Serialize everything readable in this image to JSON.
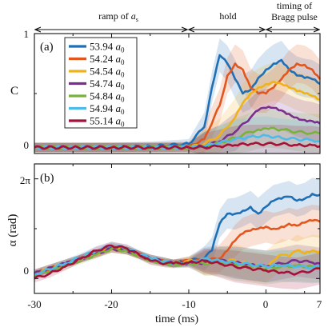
{
  "header": {
    "ramp_label": "ramp of ",
    "ramp_symbol": "a",
    "ramp_subscript": "s",
    "hold_label": "hold",
    "timing_line1": "timing of",
    "timing_line2": "Bragg pulse"
  },
  "colors": {
    "axis": "#111111",
    "series": [
      "#1f6fb6",
      "#e2561e",
      "#f0b21b",
      "#7a2e8e",
      "#78b23a",
      "#4dbbe9",
      "#a4123a"
    ]
  },
  "chart_data": [
    {
      "type": "line",
      "panel_label": "(a)",
      "ylabel": "C",
      "xlabel": "",
      "xlim": [
        -30,
        7
      ],
      "ylim": [
        0,
        1
      ],
      "y_tick_labels": [
        "0",
        "1"
      ],
      "x_ticks": [
        -30,
        -20,
        -10,
        0,
        7
      ],
      "x_tick_labels": [
        "",
        "",
        "",
        "",
        ""
      ],
      "grid": false,
      "legend_position": "top-left",
      "legend_unit": "a",
      "legend_unit_subscript": "0",
      "series": [
        {
          "name": "53.94",
          "x": [
            -30,
            -25,
            -20,
            -15,
            -10,
            -8,
            -7,
            -6,
            -5,
            -4,
            -3,
            -2,
            -1,
            0,
            1,
            2,
            3,
            4,
            5,
            6,
            7
          ],
          "y": [
            0.05,
            0.05,
            0.05,
            0.06,
            0.08,
            0.22,
            0.55,
            0.82,
            0.75,
            0.62,
            0.5,
            0.53,
            0.63,
            0.7,
            0.75,
            0.78,
            0.7,
            0.65,
            0.63,
            0.62,
            0.58
          ]
        },
        {
          "name": "54.24",
          "x": [
            -30,
            -25,
            -20,
            -15,
            -10,
            -8,
            -6,
            -5,
            -4,
            -3,
            -2,
            -1,
            0,
            1,
            2,
            3,
            4,
            5,
            6,
            7
          ],
          "y": [
            0.05,
            0.05,
            0.05,
            0.05,
            0.06,
            0.12,
            0.4,
            0.65,
            0.75,
            0.7,
            0.55,
            0.5,
            0.5,
            0.55,
            0.62,
            0.7,
            0.75,
            0.74,
            0.7,
            0.62
          ]
        },
        {
          "name": "54.54",
          "x": [
            -30,
            -25,
            -20,
            -15,
            -10,
            -8,
            -6,
            -4,
            -3,
            -2,
            -1,
            0,
            1,
            2,
            3,
            4,
            5,
            6,
            7
          ],
          "y": [
            0.05,
            0.05,
            0.05,
            0.05,
            0.05,
            0.08,
            0.15,
            0.3,
            0.42,
            0.5,
            0.55,
            0.58,
            0.6,
            0.58,
            0.55,
            0.52,
            0.5,
            0.48,
            0.45
          ]
        },
        {
          "name": "54.74",
          "x": [
            -30,
            -25,
            -20,
            -15,
            -10,
            -8,
            -6,
            -4,
            -2,
            -1,
            0,
            1,
            2,
            3,
            4,
            5,
            6,
            7
          ],
          "y": [
            0.05,
            0.05,
            0.05,
            0.05,
            0.05,
            0.06,
            0.1,
            0.18,
            0.3,
            0.36,
            0.38,
            0.38,
            0.36,
            0.33,
            0.3,
            0.28,
            0.27,
            0.25
          ]
        },
        {
          "name": "54.84",
          "x": [
            -30,
            -25,
            -20,
            -15,
            -10,
            -8,
            -6,
            -4,
            -2,
            -1,
            0,
            2,
            4,
            6,
            7
          ],
          "y": [
            0.05,
            0.05,
            0.05,
            0.05,
            0.05,
            0.06,
            0.09,
            0.13,
            0.18,
            0.2,
            0.21,
            0.2,
            0.18,
            0.17,
            0.17
          ]
        },
        {
          "name": "54.94",
          "x": [
            -30,
            -25,
            -20,
            -15,
            -10,
            -8,
            -6,
            -4,
            -2,
            0,
            2,
            4,
            6,
            7
          ],
          "y": [
            0.05,
            0.05,
            0.05,
            0.05,
            0.05,
            0.06,
            0.09,
            0.12,
            0.14,
            0.15,
            0.13,
            0.12,
            0.11,
            0.1
          ]
        },
        {
          "name": "55.14",
          "x": [
            -30,
            -25,
            -20,
            -15,
            -10,
            -8,
            -6,
            -4,
            -2,
            0,
            2,
            4,
            6,
            7
          ],
          "y": [
            0.05,
            0.05,
            0.05,
            0.05,
            0.05,
            0.05,
            0.06,
            0.07,
            0.08,
            0.08,
            0.08,
            0.07,
            0.07,
            0.06
          ]
        }
      ]
    },
    {
      "type": "line",
      "panel_label": "(b)",
      "ylabel": "α (rad)",
      "xlabel": "time (ms)",
      "xlim": [
        -30,
        7
      ],
      "ylim": [
        -0.15,
        1.15
      ],
      "y_ticks": [
        0,
        1
      ],
      "y_tick_labels": [
        "0",
        "2π"
      ],
      "x_ticks": [
        -30,
        -20,
        -10,
        0,
        7
      ],
      "x_tick_labels": [
        "-30",
        "-20",
        "-10",
        "0",
        "7"
      ],
      "grid": false,
      "series": [
        {
          "name": "53.94",
          "x": [
            -30,
            -26,
            -22,
            -20,
            -18,
            -15,
            -12,
            -10,
            -8,
            -7,
            -6,
            -5,
            -4,
            -3,
            -2,
            -1,
            0,
            1,
            2,
            3,
            4,
            5,
            6,
            7
          ],
          "y": [
            0.05,
            0.15,
            0.25,
            0.32,
            0.28,
            0.2,
            0.15,
            0.18,
            0.2,
            0.28,
            0.55,
            0.65,
            0.65,
            0.68,
            0.72,
            0.65,
            0.72,
            0.78,
            0.8,
            0.82,
            0.78,
            0.8,
            0.85,
            0.84
          ]
        },
        {
          "name": "54.24",
          "x": [
            -30,
            -26,
            -22,
            -20,
            -18,
            -15,
            -12,
            -10,
            -8,
            -6,
            -5,
            -4,
            -3,
            -2,
            -1,
            0,
            1,
            2,
            3,
            4,
            5,
            6,
            7
          ],
          "y": [
            0.05,
            0.15,
            0.25,
            0.3,
            0.28,
            0.2,
            0.15,
            0.18,
            0.18,
            0.2,
            0.28,
            0.38,
            0.45,
            0.48,
            0.5,
            0.52,
            0.5,
            0.52,
            0.55,
            0.53,
            0.56,
            0.58,
            0.57
          ]
        },
        {
          "name": "54.54",
          "x": [
            -30,
            -26,
            -22,
            -20,
            -18,
            -15,
            -12,
            -10,
            -8,
            -6,
            -4,
            -2,
            0,
            1,
            2,
            3,
            4,
            5,
            6,
            7
          ],
          "y": [
            0.05,
            0.15,
            0.25,
            0.3,
            0.28,
            0.2,
            0.15,
            0.18,
            0.15,
            0.18,
            0.18,
            0.14,
            0.12,
            0.18,
            0.24,
            0.22,
            0.28,
            0.25,
            0.28,
            0.27
          ]
        },
        {
          "name": "54.74",
          "x": [
            -30,
            -26,
            -22,
            -20,
            -18,
            -15,
            -12,
            -10,
            -8,
            -6,
            -4,
            -2,
            0,
            2,
            4,
            6,
            7
          ],
          "y": [
            0.05,
            0.15,
            0.25,
            0.3,
            0.28,
            0.2,
            0.15,
            0.15,
            0.16,
            0.18,
            0.16,
            0.14,
            0.12,
            0.15,
            0.18,
            0.16,
            0.15
          ]
        },
        {
          "name": "54.84",
          "x": [
            -30,
            -26,
            -22,
            -20,
            -18,
            -15,
            -12,
            -10,
            -8,
            -6,
            -4,
            -2,
            0,
            2,
            4,
            6,
            7
          ],
          "y": [
            0.03,
            0.13,
            0.24,
            0.3,
            0.28,
            0.18,
            0.14,
            0.15,
            0.15,
            0.16,
            0.14,
            0.12,
            0.1,
            0.12,
            0.13,
            0.12,
            0.12
          ]
        },
        {
          "name": "54.94",
          "x": [
            -30,
            -26,
            -22,
            -20,
            -18,
            -15,
            -12,
            -10,
            -8,
            -6,
            -4,
            -2,
            0,
            2,
            4,
            6,
            7
          ],
          "y": [
            0.04,
            0.15,
            0.28,
            0.33,
            0.3,
            0.2,
            0.15,
            0.16,
            0.2,
            0.18,
            0.16,
            0.14,
            0.12,
            0.13,
            0.12,
            0.11,
            0.12
          ]
        },
        {
          "name": "55.14",
          "x": [
            -30,
            -28,
            -26,
            -24,
            -22,
            -20,
            -18,
            -16,
            -15,
            -13,
            -12,
            -10,
            -8,
            -6,
            -4,
            -2,
            0,
            2,
            4,
            6,
            7
          ],
          "y": [
            0.0,
            0.05,
            0.12,
            0.2,
            0.28,
            0.33,
            0.3,
            0.22,
            0.18,
            0.15,
            0.15,
            0.16,
            0.18,
            0.15,
            0.12,
            0.1,
            0.08,
            0.06,
            0.05,
            0.08,
            0.1
          ]
        }
      ]
    }
  ]
}
